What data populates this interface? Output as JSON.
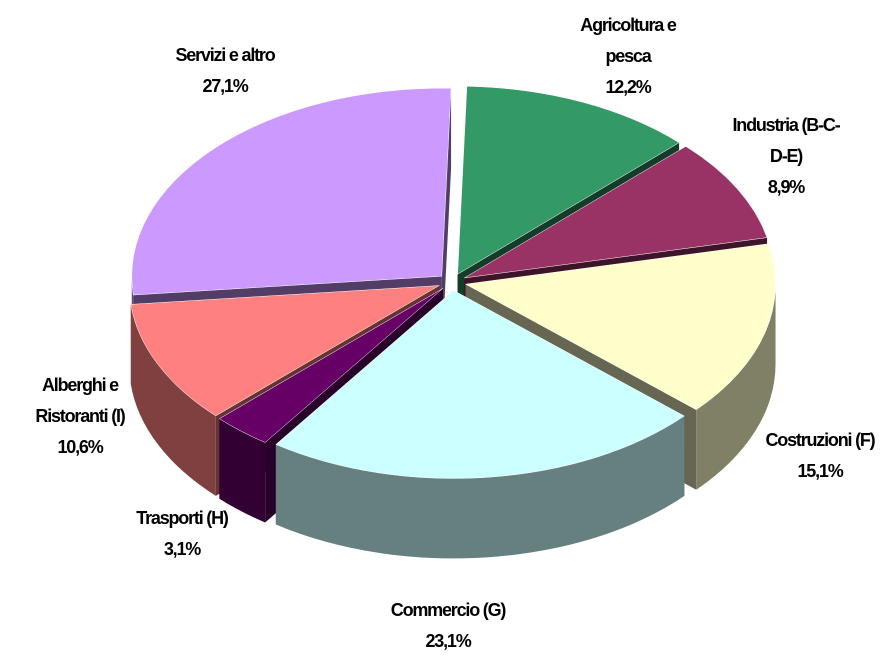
{
  "chart_data": {
    "type": "pie3d",
    "categories": [
      "Agricoltura e pesca",
      "Industria (B-C-D-E)",
      "Costruzioni (F)",
      "Commercio (G)",
      "Trasporti (H)",
      "Alberghi e Ristoranti (I)",
      "Servizi e altro"
    ],
    "values": [
      12.2,
      8.9,
      15.1,
      23.1,
      3.1,
      10.6,
      27.1
    ],
    "value_labels": [
      "12,2%",
      "8,9%",
      "15,1%",
      "23,1%",
      "3,1%",
      "10,6%",
      "27,1%"
    ],
    "colors": [
      "#339966",
      "#993366",
      "#ffffcc",
      "#ccffff",
      "#660066",
      "#ff8080",
      "#cc99ff"
    ]
  }
}
